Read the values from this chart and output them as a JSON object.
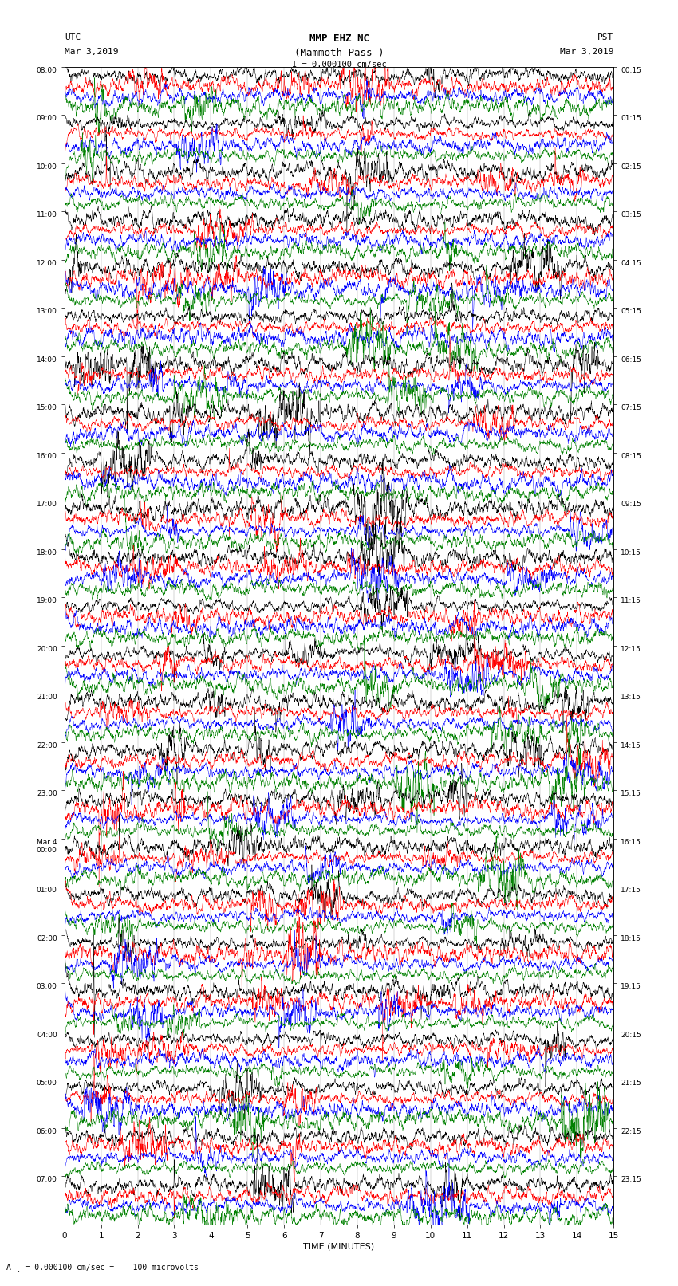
{
  "title_line1": "MMP EHZ NC",
  "title_line2": "(Mammoth Pass )",
  "scale_label": "I = 0.000100 cm/sec",
  "footer_label": "A [ = 0.000100 cm/sec =    100 microvolts",
  "xlabel": "TIME (MINUTES)",
  "n_rows": 24,
  "minutes_per_row": 15,
  "colors": [
    "black",
    "red",
    "blue",
    "green"
  ],
  "bg_color": "white",
  "fig_width": 8.5,
  "fig_height": 16.13,
  "left_time_labels": [
    "08:00",
    "09:00",
    "10:00",
    "11:00",
    "12:00",
    "13:00",
    "14:00",
    "15:00",
    "16:00",
    "17:00",
    "18:00",
    "19:00",
    "20:00",
    "21:00",
    "22:00",
    "23:00",
    "Mar 4\n00:00",
    "01:00",
    "02:00",
    "03:00",
    "04:00",
    "05:00",
    "06:00",
    "07:00"
  ],
  "right_time_labels": [
    "00:15",
    "01:15",
    "02:15",
    "03:15",
    "04:15",
    "05:15",
    "06:15",
    "07:15",
    "08:15",
    "09:15",
    "10:15",
    "11:15",
    "12:15",
    "13:15",
    "14:15",
    "15:15",
    "16:15",
    "17:15",
    "18:15",
    "19:15",
    "20:15",
    "21:15",
    "22:15",
    "23:15"
  ]
}
